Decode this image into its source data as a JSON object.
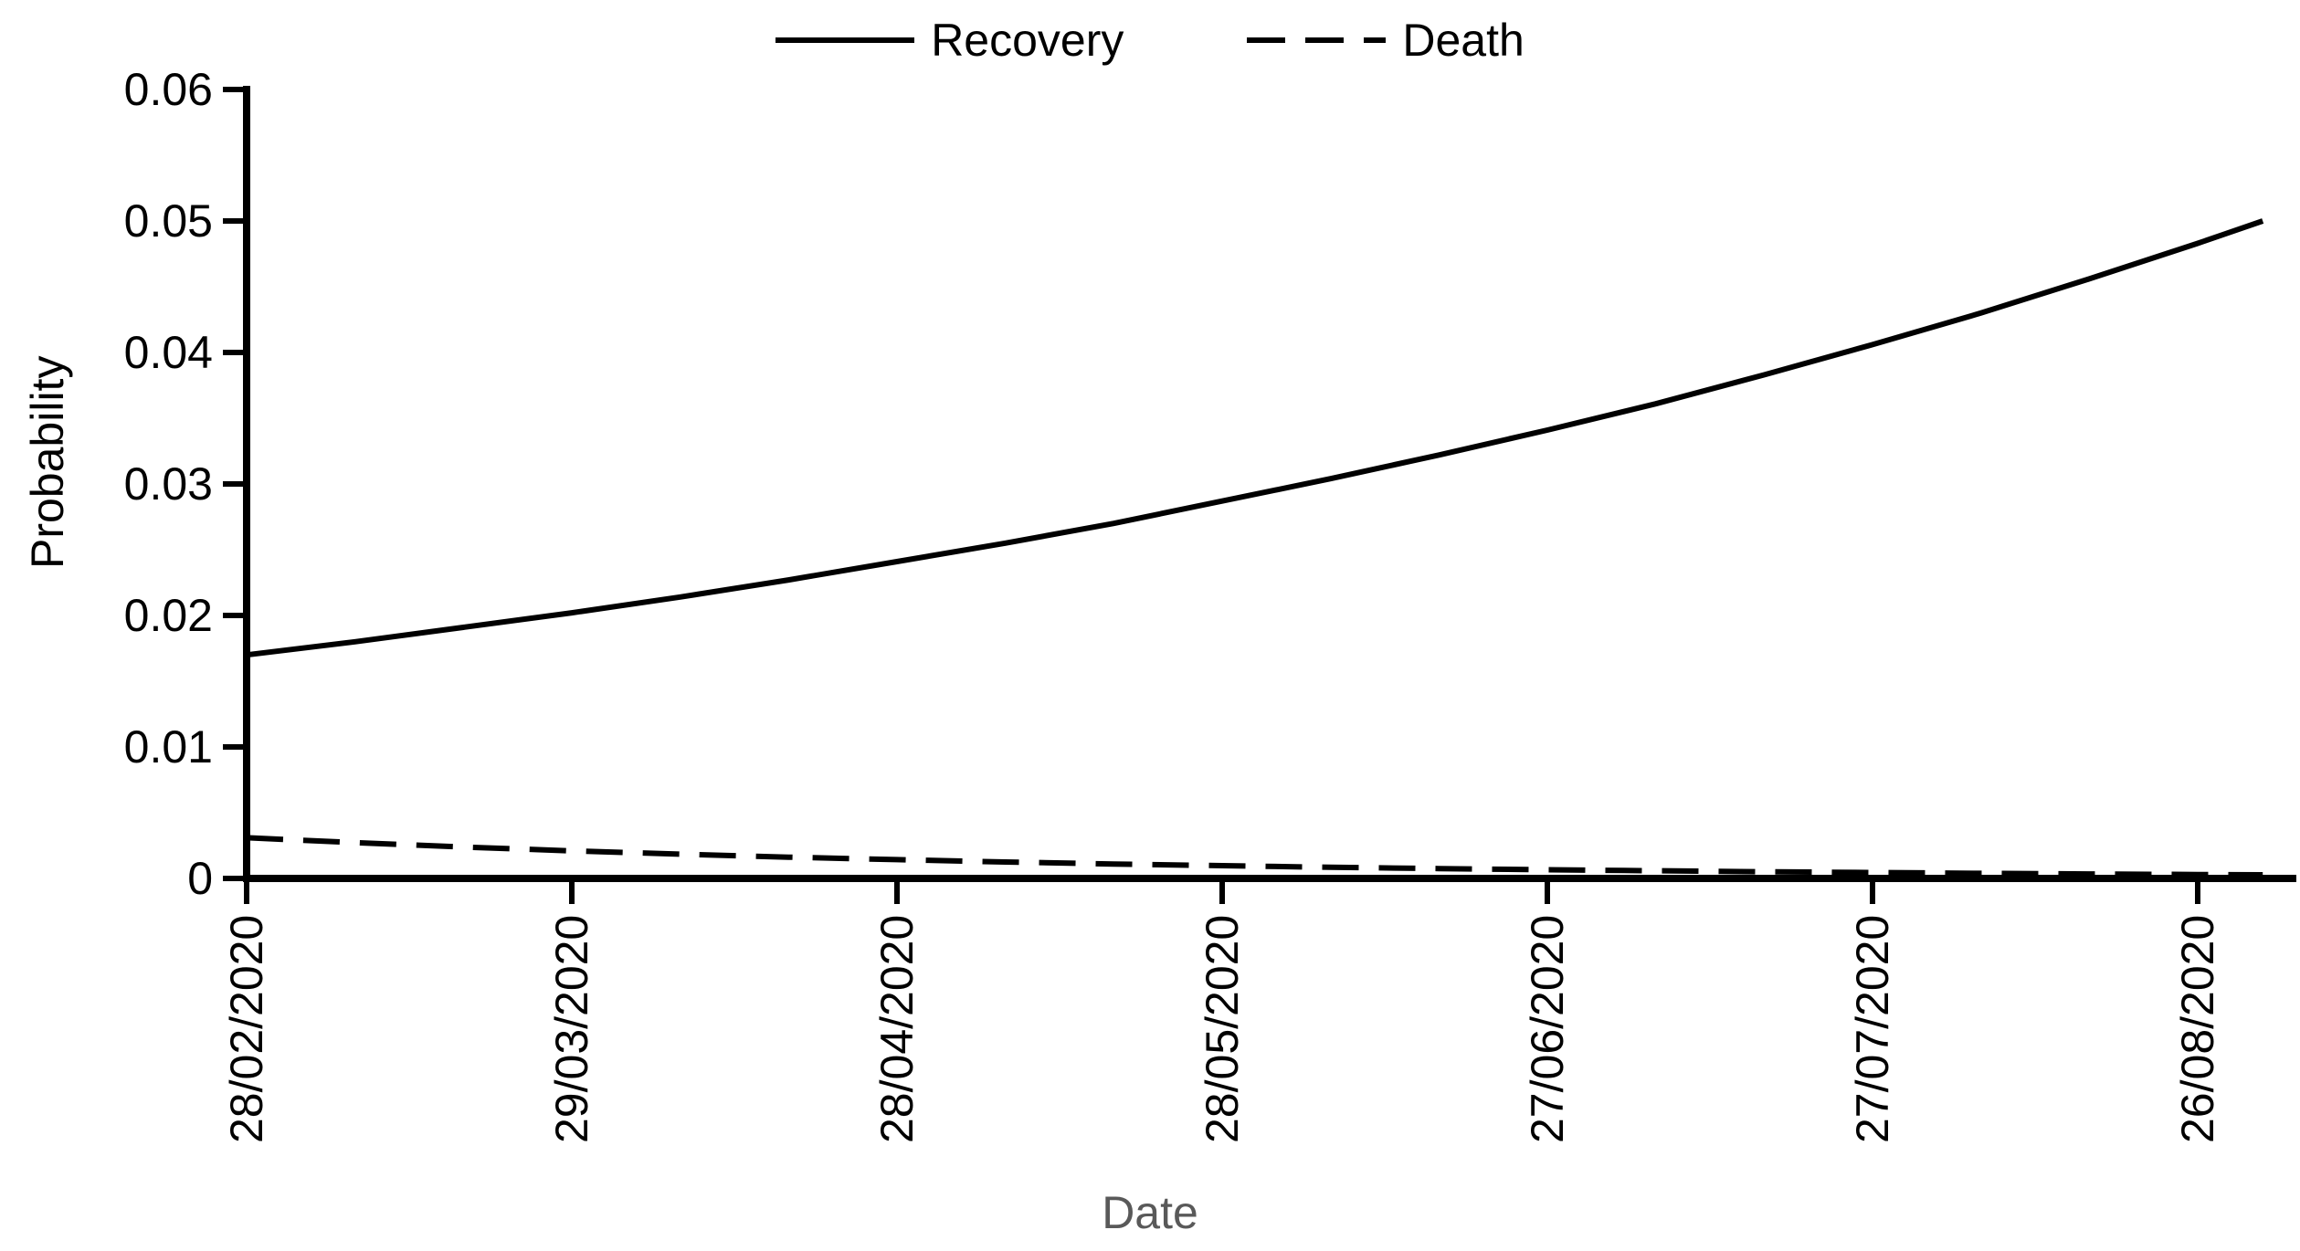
{
  "chart_data": {
    "type": "line",
    "title": "",
    "xlabel": "Date",
    "ylabel": "Probability",
    "xlabel_color": "#595959",
    "axis_color": "#000000",
    "grid": false,
    "legend_position": "top-center",
    "ylim": [
      0,
      0.06
    ],
    "y_tick_labels": [
      "0",
      "0.01",
      "0.02",
      "0.03",
      "0.04",
      "0.05",
      "0.06"
    ],
    "x_tick_labels": [
      "28/02/2020",
      "29/03/2020",
      "28/04/2020",
      "28/05/2020",
      "27/06/2020",
      "27/07/2020",
      "26/08/2020"
    ],
    "x_tick_days": [
      0,
      30,
      60,
      90,
      120,
      150,
      180
    ],
    "x": [
      0,
      10,
      20,
      30,
      40,
      50,
      60,
      70,
      80,
      90,
      100,
      110,
      120,
      130,
      140,
      150,
      160,
      170,
      180,
      186
    ],
    "series": [
      {
        "name": "Recovery",
        "line_style": "solid",
        "color": "#000000",
        "values": [
          0.017,
          0.018,
          0.0191,
          0.0202,
          0.0214,
          0.0227,
          0.0241,
          0.0255,
          0.027,
          0.0287,
          0.0304,
          0.0322,
          0.0341,
          0.0361,
          0.0383,
          0.0406,
          0.043,
          0.0456,
          0.0483,
          0.05
        ]
      },
      {
        "name": "Death",
        "line_style": "dashed",
        "color": "#000000",
        "values": [
          0.0031,
          0.00272,
          0.00239,
          0.0021,
          0.00185,
          0.00162,
          0.00143,
          0.00125,
          0.0011,
          0.00097,
          0.00085,
          0.00075,
          0.00066,
          0.00058,
          0.00051,
          0.00045,
          0.00039,
          0.00034,
          0.0003,
          0.00028
        ]
      }
    ]
  }
}
